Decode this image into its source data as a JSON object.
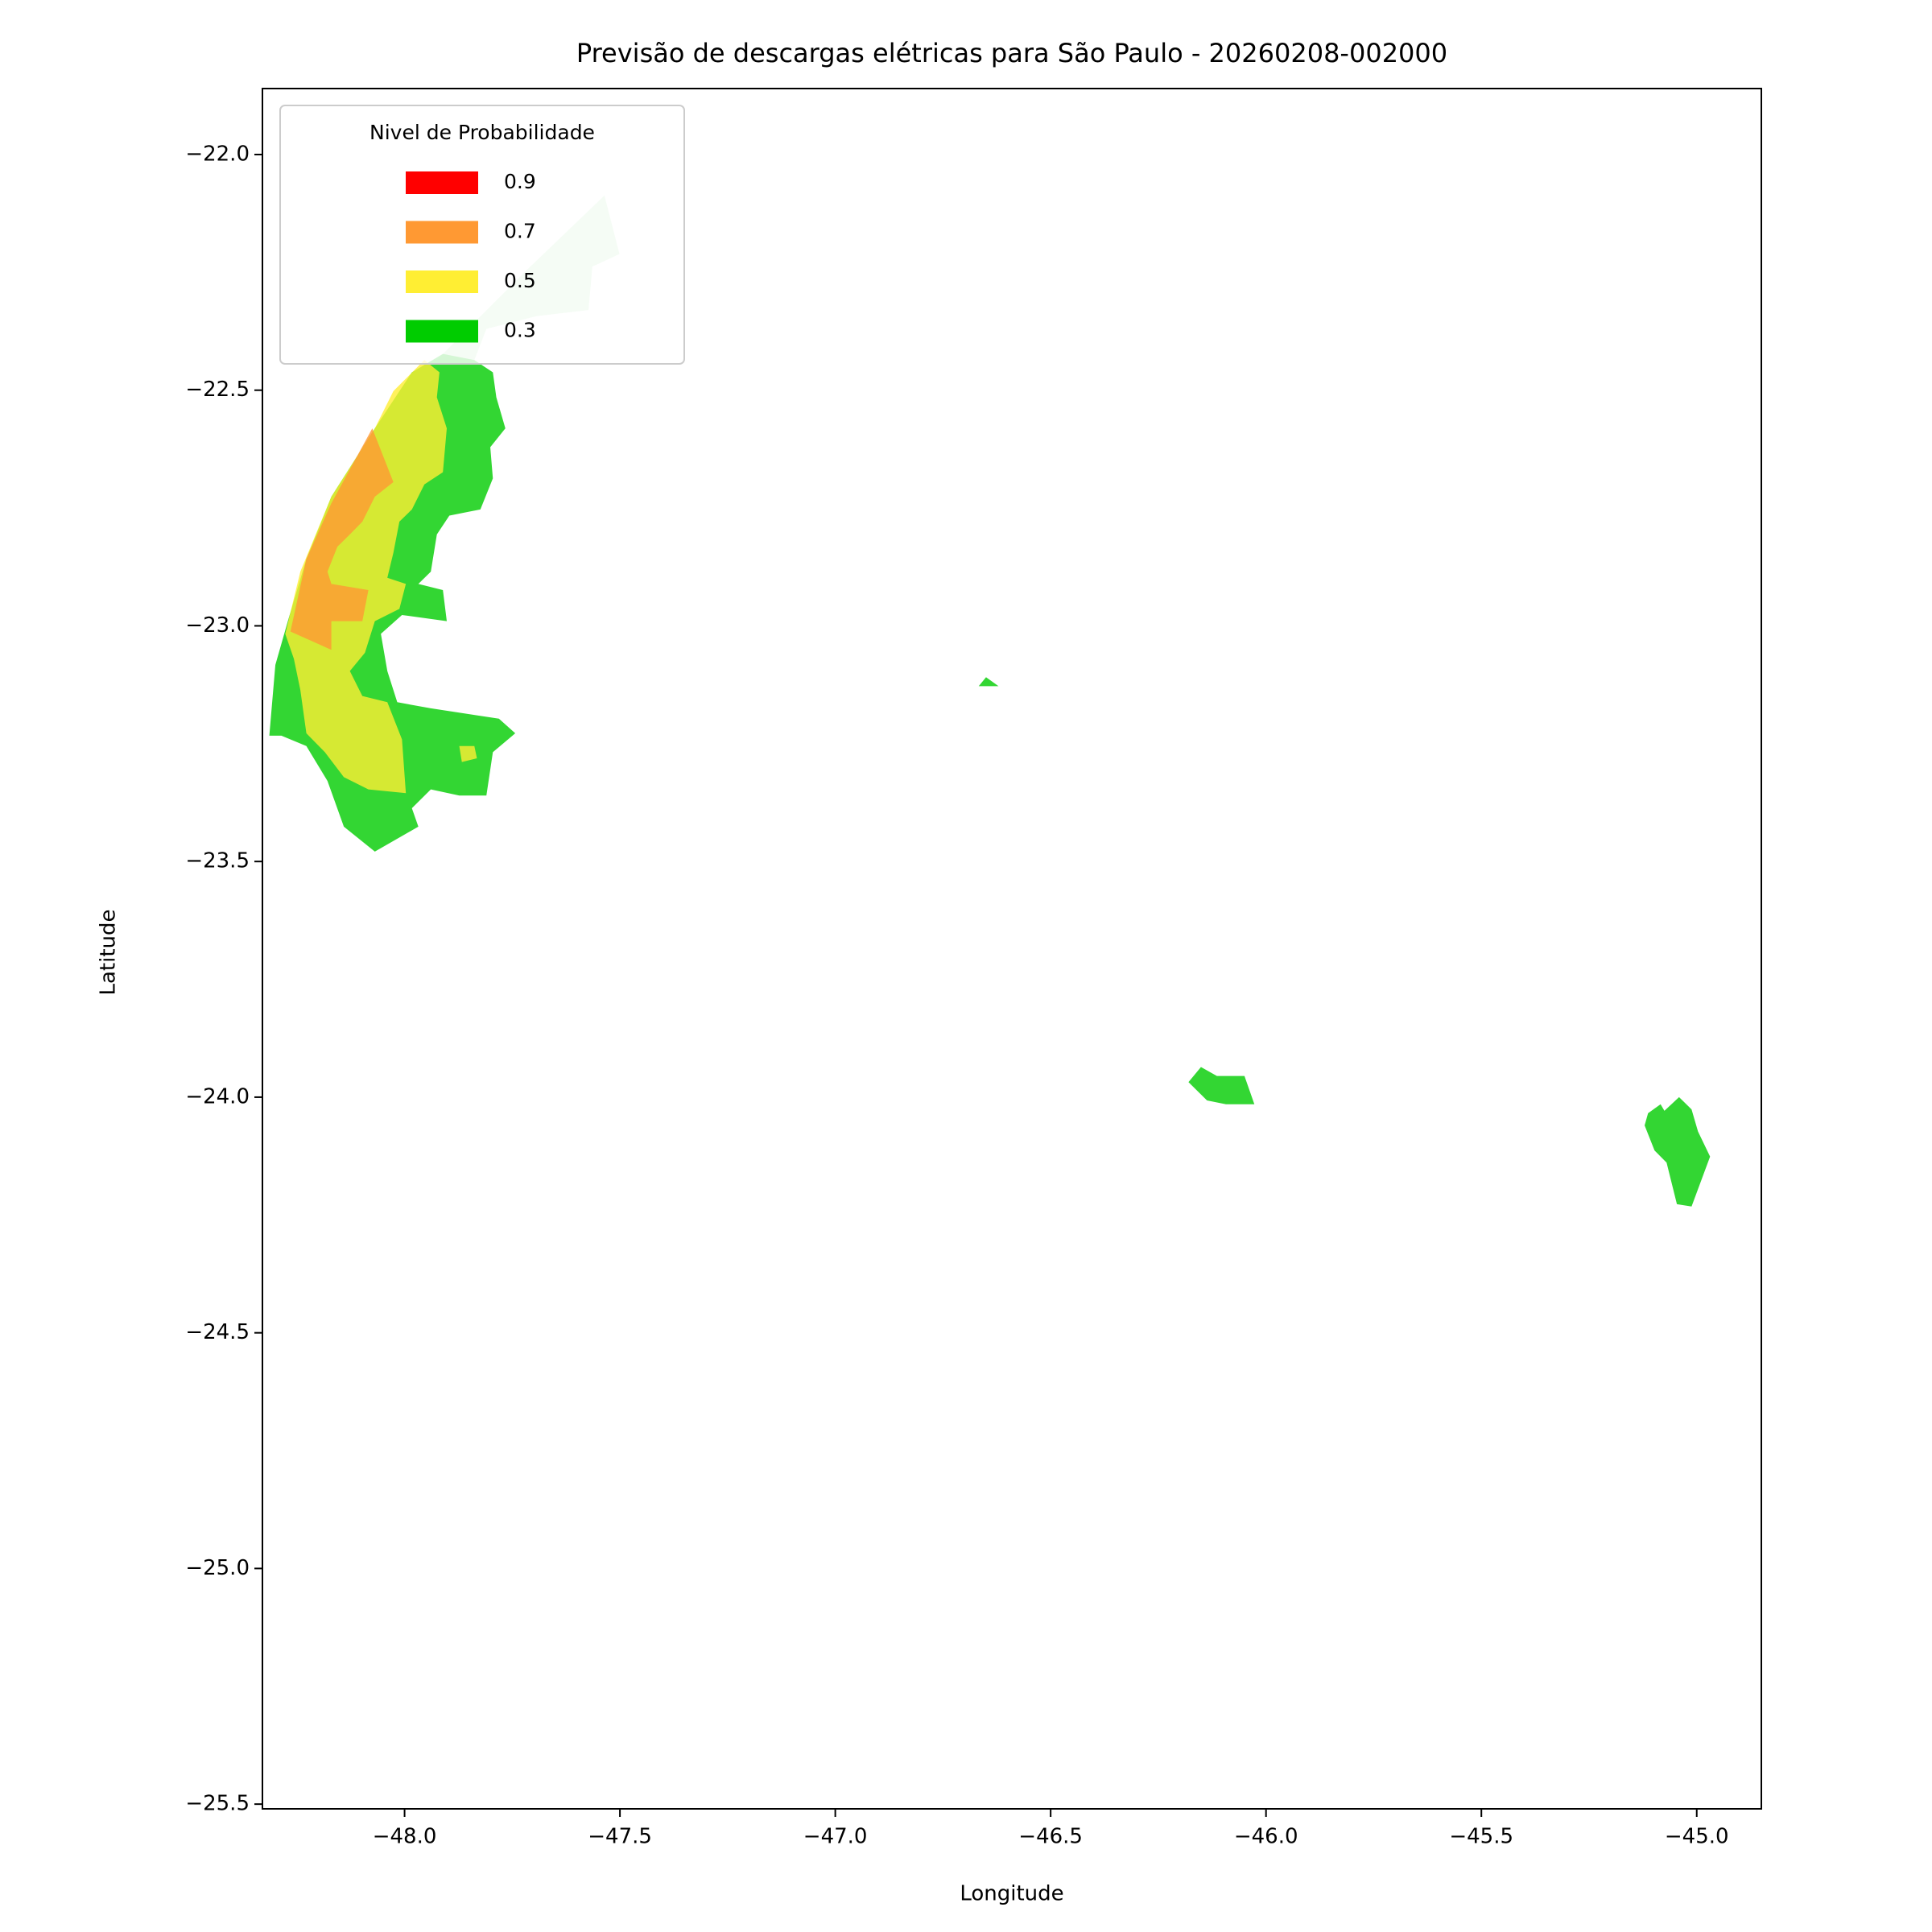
{
  "chart_data": {
    "type": "contour",
    "title": "Previsão de descargas elétricas para São Paulo - 20260208-002000",
    "x_label": "Longitude",
    "y_label": "Latitude",
    "legend_title": "Nivel de Probabilidade",
    "legend_position": "upper left",
    "xlim": [
      -48.33,
      -44.85
    ],
    "ylim": [
      -25.51,
      -21.86
    ],
    "xticks": [
      {
        "value": -48,
        "label": "−48.0"
      },
      {
        "value": -47.5,
        "label": "−47.5"
      },
      {
        "value": -47,
        "label": "−47.0"
      },
      {
        "value": -46.5,
        "label": "−46.5"
      },
      {
        "value": -46,
        "label": "−46.0"
      },
      {
        "value": -45.5,
        "label": "−45.5"
      },
      {
        "value": -45,
        "label": "−45.0"
      }
    ],
    "yticks": [
      {
        "value": -22,
        "label": "−22.0"
      },
      {
        "value": -22.5,
        "label": "−22.5"
      },
      {
        "value": -23,
        "label": "−23.0"
      },
      {
        "value": -23.5,
        "label": "−23.5"
      },
      {
        "value": -24,
        "label": "−24.0"
      },
      {
        "value": -24.5,
        "label": "−24.5"
      },
      {
        "value": -25,
        "label": "−25.0"
      },
      {
        "value": -25.5,
        "label": "−25.5"
      }
    ],
    "series": [
      {
        "name": "0.9",
        "color": "#ff0000",
        "regions": []
      },
      {
        "name": "0.7",
        "color": "#ff9933",
        "regions": [
          {
            "lon": [
              -48.075,
              -48.026,
              -48.069,
              -48.098,
              -48.127,
              -48.156,
              -48.179,
              -48.17,
              -48.084,
              -48.098,
              -48.17,
              -48.17,
              -48.265,
              -48.228,
              -48.17
            ],
            "lat": [
              -22.581,
              -22.695,
              -22.726,
              -22.779,
              -22.806,
              -22.832,
              -22.885,
              -22.911,
              -22.924,
              -22.99,
              -22.99,
              -23.051,
              -23.012,
              -22.858,
              -22.74
            ]
          }
        ]
      },
      {
        "name": "0.5",
        "color": "#ffee33",
        "regions": [
          {
            "lon": [
              -48.069,
              -48.026,
              -47.954,
              -47.919,
              -47.925,
              -47.902,
              -47.911,
              -47.954,
              -47.983,
              -48.012,
              -48.026,
              -48.04,
              -47.997,
              -48.012,
              -48.069,
              -48.092,
              -48.127,
              -48.098,
              -48.04,
              -48.006,
              -47.997,
              -48.084,
              -48.141,
              -48.185,
              -48.228,
              -48.242,
              -48.257,
              -48.277,
              -48.242,
              -48.17
            ],
            "lat": [
              -22.581,
              -22.502,
              -22.436,
              -22.462,
              -22.515,
              -22.581,
              -22.674,
              -22.7,
              -22.753,
              -22.779,
              -22.845,
              -22.898,
              -22.911,
              -22.964,
              -22.99,
              -23.057,
              -23.096,
              -23.149,
              -23.162,
              -23.241,
              -23.355,
              -23.347,
              -23.321,
              -23.268,
              -23.228,
              -23.136,
              -23.07,
              -23.017,
              -22.885,
              -22.726
            ]
          },
          {
            "lon": [
              -47.873,
              -47.838,
              -47.832,
              -47.867
            ],
            "lat": [
              -23.255,
              -23.255,
              -23.281,
              -23.289
            ]
          }
        ]
      },
      {
        "name": "0.3",
        "color": "#00cc00",
        "regions": [
          {
            "lon": [
              -47.911,
              -47.838,
              -47.795,
              -47.787,
              -47.766,
              -47.801,
              -47.795,
              -47.824,
              -47.896,
              -47.925,
              -47.939,
              -47.968,
              -47.911,
              -47.902,
              -48.006,
              -48.055,
              -48.04,
              -48.017,
              -47.939,
              -47.781,
              -47.743,
              -47.795,
              -47.81,
              -47.873,
              -47.939,
              -47.983,
              -47.968,
              -48.069,
              -48.141,
              -48.179,
              -48.228,
              -48.286,
              -48.314,
              -48.3,
              -48.271,
              -48.228,
              -48.17,
              -48.069,
              -47.983
            ],
            "lat": [
              -22.423,
              -22.436,
              -22.462,
              -22.515,
              -22.581,
              -22.621,
              -22.687,
              -22.753,
              -22.766,
              -22.806,
              -22.885,
              -22.911,
              -22.924,
              -22.99,
              -22.977,
              -23.017,
              -23.096,
              -23.162,
              -23.175,
              -23.197,
              -23.228,
              -23.268,
              -23.36,
              -23.36,
              -23.347,
              -23.387,
              -23.426,
              -23.479,
              -23.426,
              -23.329,
              -23.255,
              -23.233,
              -23.233,
              -23.083,
              -22.99,
              -22.858,
              -22.726,
              -22.581,
              -22.462
            ]
          },
          {
            "lon": [
              -46.18,
              -46.151,
              -46.114,
              -46.05,
              -46.027,
              -46.093,
              -46.137
            ],
            "lat": [
              -23.968,
              -23.936,
              -23.955,
              -23.955,
              -24.015,
              -24.015,
              -24.007
            ]
          },
          {
            "lon": [
              -45.113,
              -45.084,
              -45.075,
              -45.041,
              -45.012,
              -44.997,
              -44.969,
              -45.012,
              -45.046,
              -45.07,
              -45.098,
              -45.121
            ],
            "lat": [
              -24.034,
              -24.015,
              -24.029,
              -24,
              -24.026,
              -24.073,
              -24.126,
              -24.232,
              -24.227,
              -24.139,
              -24.113,
              -24.06
            ]
          },
          {
            "lon": [
              -46.667,
              -46.65,
              -46.621
            ],
            "lat": [
              -23.128,
              -23.109,
              -23.128
            ]
          }
        ]
      },
      {
        "color": "#bfeebf",
        "regions": [
          {
            "lon": [
              -47.925,
              -47.723,
              -47.536,
              -47.501,
              -47.564,
              -47.573,
              -47.694,
              -47.81,
              -47.838
            ],
            "lat": [
              -22.436,
              -22.251,
              -22.087,
              -22.211,
              -22.238,
              -22.33,
              -22.343,
              -22.37,
              -22.436
            ]
          }
        ]
      }
    ]
  }
}
